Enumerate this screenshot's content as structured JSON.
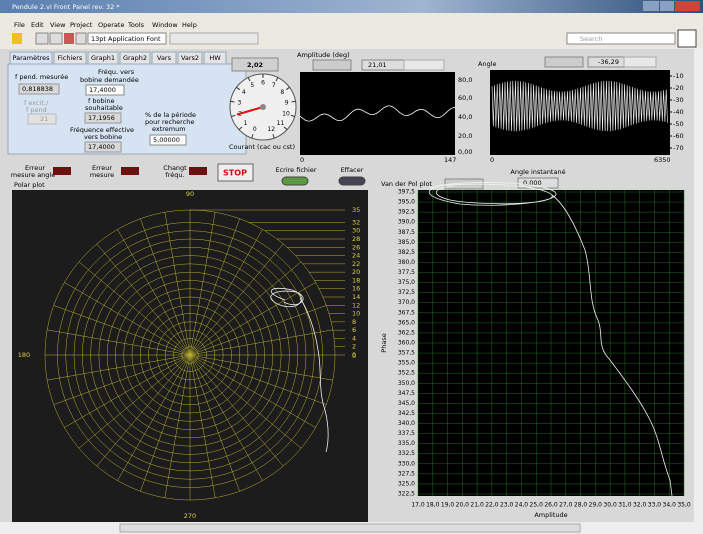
{
  "window": {
    "title": "Pendule 2.vi Front Panel rev. 32 *"
  },
  "menu": [
    "File",
    "Edit",
    "View",
    "Project",
    "Operate",
    "Tools",
    "Window",
    "Help"
  ],
  "toolbar": {
    "font": "13pt Application Font",
    "search": "Search"
  },
  "tabs": [
    "Paramètres",
    "Fichiers",
    "Graph1",
    "Graph2",
    "Vars",
    "Vars2",
    "HW"
  ],
  "params": {
    "f_pend_label": "f pend. mesurée",
    "f_pend": "0,818838",
    "ratio_label_1": "f excit./",
    "ratio_label_2": "f pend",
    "ratio": "21",
    "freq_req_label_1": "Fréqu. vers",
    "freq_req_label_2": "bobine demandée",
    "freq_req": "17,4000",
    "f_bob_label_1": "f bobine",
    "f_bob_label_2": "souhaitable",
    "f_bob": "17,1956",
    "f_eff_label_1": "Fréquence effective",
    "f_eff_label_2": "vers bobine",
    "f_eff": "17,4000",
    "pct_label_1": "% de la période",
    "pct_label_2": "pour recherche",
    "pct_label_3": "extremum",
    "pct": "5,00000"
  },
  "gauge": {
    "value": "2,02",
    "label": "Courant (cac ou cst)",
    "scale": [
      0,
      1,
      2,
      3,
      4,
      5,
      6,
      7,
      8,
      9,
      10,
      11,
      12
    ]
  },
  "amplitude": {
    "title": "Amplitude (deg)",
    "value": "21,01",
    "yticks": [
      "80,0",
      "60,0",
      "40,0",
      "20,0",
      "0,00"
    ],
    "xmin": "0",
    "xmax": "147"
  },
  "angle": {
    "title": "Angle",
    "value": "-36,29",
    "yticks": [
      -10,
      -20,
      -30,
      -40,
      -50,
      -60,
      -70
    ],
    "xmin": "0",
    "xmax": "6350"
  },
  "indicators": {
    "err_angle_1": "Erreur",
    "err_angle_2": "mesure angle",
    "err_1": "Erreur",
    "err_2": "mesure",
    "chg_1": "Changt",
    "chg_2": "fréqu.",
    "stop": "STOP",
    "write": "Ecrire fichier",
    "clear": "Effacer",
    "inst_label": "Angle instantané",
    "inst": "0,000"
  },
  "polar": {
    "title": "Polar plot",
    "top": "90",
    "bottom": "270",
    "left": "180",
    "right": "0",
    "rings": [
      35,
      32,
      30,
      28,
      26,
      24,
      22,
      20,
      18,
      16,
      14,
      12,
      10,
      8,
      6,
      4,
      2,
      0
    ]
  },
  "vdp": {
    "title": "Van der Pol plot",
    "ylabel": "Phase",
    "xlabel": "Amplitude",
    "yticks": [
      "397,5",
      "395,0",
      "392,5",
      "390,0",
      "387,5",
      "385,0",
      "382,5",
      "380,0",
      "377,5",
      "375,0",
      "372,5",
      "370,0",
      "367,5",
      "365,0",
      "362,5",
      "360,0",
      "357,5",
      "355,0",
      "352,5",
      "350,0",
      "347,5",
      "345,0",
      "342,5",
      "340,0",
      "337,5",
      "335,0",
      "332,5",
      "330,0",
      "327,5",
      "325,0",
      "322,5"
    ],
    "xticks": [
      "17,0",
      "18,0",
      "19,0",
      "20,0",
      "21,0",
      "22,0",
      "23,0",
      "24,0",
      "25,0",
      "26,0",
      "27,0",
      "28,0",
      "29,0",
      "30,0",
      "31,0",
      "32,0",
      "33,0",
      "34,0",
      "35,0"
    ]
  }
}
